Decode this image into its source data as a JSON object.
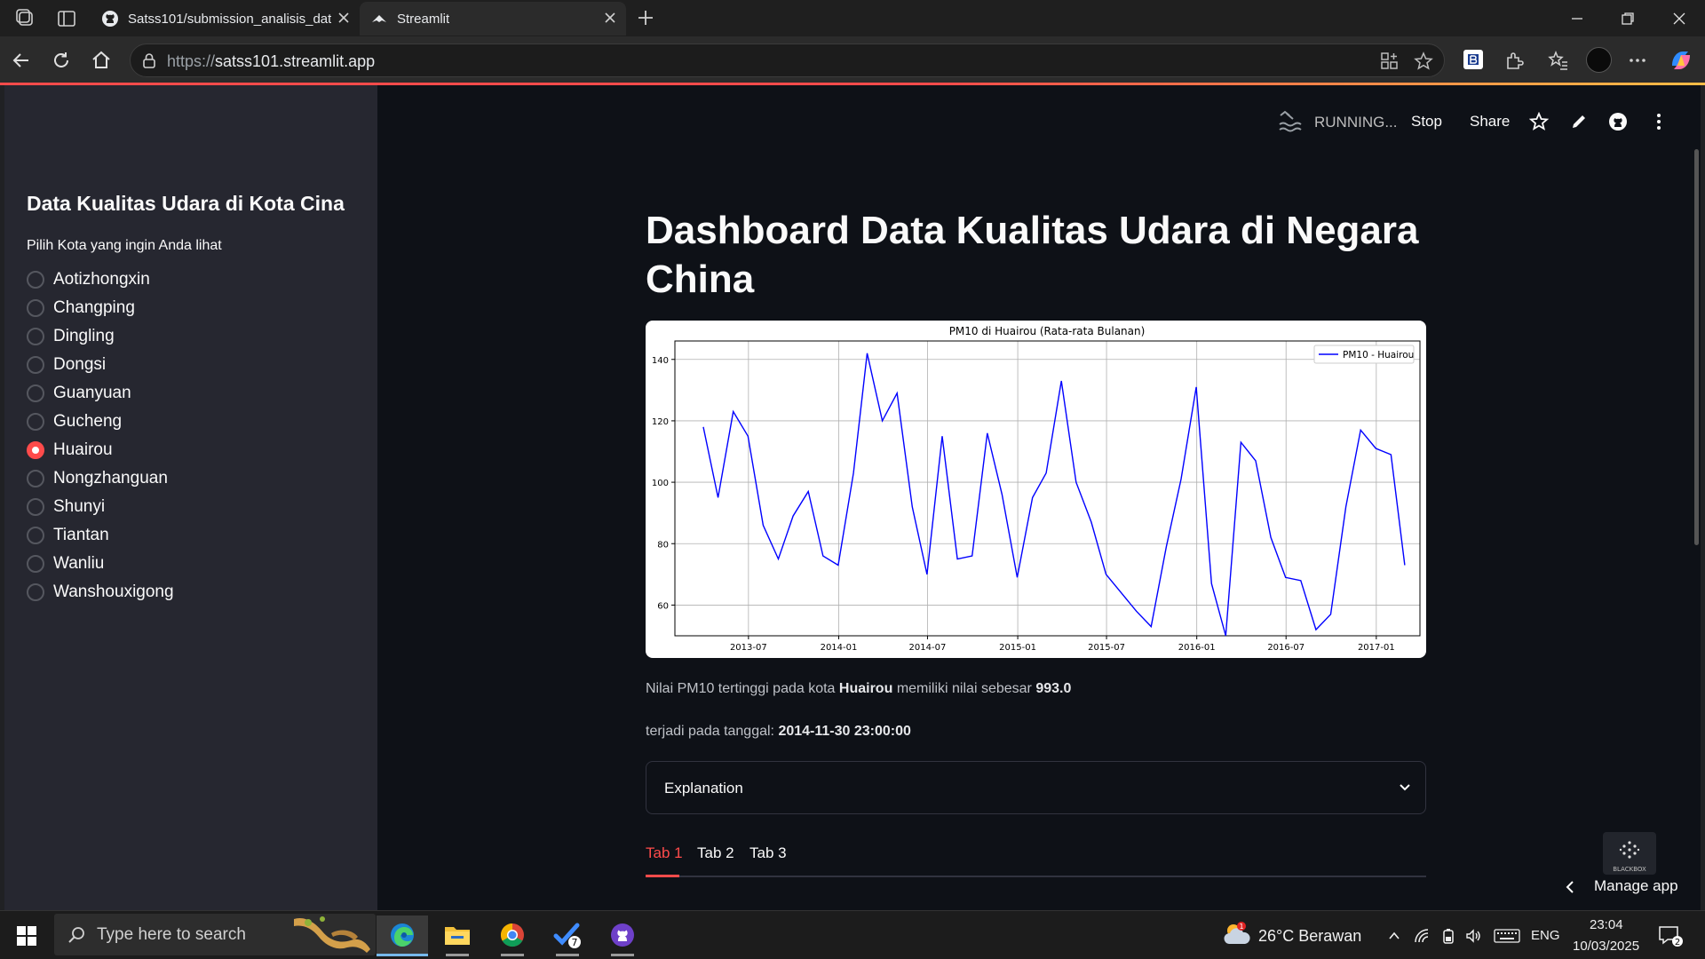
{
  "browser": {
    "tabs": [
      {
        "title": "Satss101/submission_analisis_dat",
        "icon": "github-icon",
        "active": false
      },
      {
        "title": "Streamlit",
        "icon": "streamlit-icon",
        "active": true
      }
    ],
    "url_scheme": "https://",
    "url_host": "satss101.streamlit.app"
  },
  "app_header": {
    "status": "RUNNING...",
    "stop_label": "Stop",
    "share_label": "Share"
  },
  "sidebar": {
    "title": "Data Kualitas Udara di Kota Cina",
    "radio_label": "Pilih Kota yang ingin Anda lihat",
    "options": [
      "Aotizhongxin",
      "Changping",
      "Dingling",
      "Dongsi",
      "Guanyuan",
      "Gucheng",
      "Huairou",
      "Nongzhanguan",
      "Shunyi",
      "Tiantan",
      "Wanliu",
      "Wanshouxigong"
    ],
    "selected": "Huairou"
  },
  "main": {
    "title": "Dashboard Data Kualitas Udara di Negara China",
    "info1_prefix": "Nilai PM10 tertinggi pada kota",
    "info1_city": "Huairou",
    "info1_mid": "memiliki nilai sebesar",
    "info1_value": "993.0",
    "info2_prefix": "terjadi pada tanggal:",
    "info2_date": "2014-11-30 23:00:00",
    "expander_label": "Explanation",
    "tabs": [
      "Tab 1",
      "Tab 2",
      "Tab 3"
    ],
    "active_tab": "Tab 1",
    "manage_app": "Manage app",
    "logo_text": "BLACKBOX"
  },
  "chart_data": {
    "type": "line",
    "title": "PM10 di Huairou (Rata-rata Bulanan)",
    "xlabel": "",
    "ylabel": "",
    "x_ticks": [
      "2013-07",
      "2014-01",
      "2014-07",
      "2015-01",
      "2015-07",
      "2016-01",
      "2016-07",
      "2017-01"
    ],
    "y_ticks": [
      60,
      80,
      100,
      120,
      140
    ],
    "ylim": [
      50,
      146
    ],
    "xlim": [
      "2013-02-01",
      "2017-03-31"
    ],
    "grid": true,
    "legend_position": "top-right",
    "series": [
      {
        "name": "PM10 - Huairou",
        "color": "#0000ff",
        "x": [
          "2013-03-31",
          "2013-04-30",
          "2013-05-31",
          "2013-06-30",
          "2013-07-31",
          "2013-08-31",
          "2013-09-30",
          "2013-10-31",
          "2013-11-30",
          "2013-12-31",
          "2014-01-31",
          "2014-02-28",
          "2014-03-31",
          "2014-04-30",
          "2014-05-31",
          "2014-06-30",
          "2014-07-31",
          "2014-08-31",
          "2014-09-30",
          "2014-10-31",
          "2014-11-30",
          "2014-12-31",
          "2015-01-31",
          "2015-02-28",
          "2015-03-31",
          "2015-04-30",
          "2015-05-31",
          "2015-06-30",
          "2015-07-31",
          "2015-08-31",
          "2015-09-30",
          "2015-10-31",
          "2015-11-30",
          "2015-12-31",
          "2016-01-31",
          "2016-02-29",
          "2016-03-31",
          "2016-04-30",
          "2016-05-31",
          "2016-06-30",
          "2016-07-31",
          "2016-08-31",
          "2016-09-30",
          "2016-10-31",
          "2016-11-30",
          "2016-12-31",
          "2017-01-31",
          "2017-02-28"
        ],
        "y": [
          118,
          95,
          123,
          115,
          86,
          75,
          89,
          97,
          76,
          73,
          103,
          142,
          120,
          129,
          92,
          70,
          115,
          75,
          76,
          116,
          96,
          69,
          95,
          103,
          133,
          100,
          87,
          70,
          64,
          58,
          53,
          79,
          101,
          131,
          67,
          50,
          113,
          107,
          82,
          69,
          68,
          52,
          57,
          92,
          117,
          111,
          109,
          73
        ]
      }
    ]
  }
}
